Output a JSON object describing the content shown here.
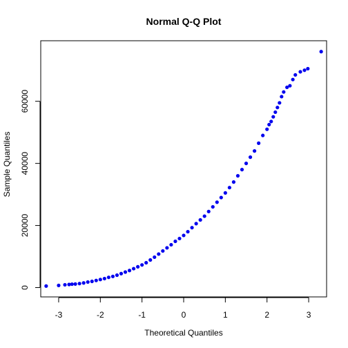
{
  "chart_data": {
    "type": "scatter",
    "title": "Normal Q-Q Plot",
    "xlabel": "Theoretical Quantiles",
    "ylabel": "Sample Quantiles",
    "xlim": [
      -3.43,
      3.43
    ],
    "ylim": [
      -3000,
      79500
    ],
    "xticks": [
      -3,
      -2,
      -1,
      0,
      1,
      2,
      3
    ],
    "yticks": [
      0,
      20000,
      40000,
      60000
    ],
    "grid": false,
    "legend": "none",
    "point_color": "#0000ee",
    "series": [
      {
        "x": [
          -3.3,
          -3.0,
          -2.85,
          -2.75,
          -2.68,
          -2.6,
          -2.5,
          -2.4,
          -2.3,
          -2.2,
          -2.1,
          -2.0,
          -1.9,
          -1.8,
          -1.7,
          -1.6,
          -1.5,
          -1.4,
          -1.3,
          -1.2,
          -1.1,
          -1.0,
          -0.9,
          -0.8,
          -0.7,
          -0.6,
          -0.5,
          -0.4,
          -0.3,
          -0.2,
          -0.1,
          0.0,
          0.1,
          0.2,
          0.3,
          0.4,
          0.5,
          0.6,
          0.7,
          0.8,
          0.9,
          1.0,
          1.1,
          1.2,
          1.3,
          1.4,
          1.5,
          1.6,
          1.7,
          1.8,
          1.9,
          2.0,
          2.05,
          2.1,
          2.15,
          2.2,
          2.25,
          2.3,
          2.35,
          2.4,
          2.48,
          2.55,
          2.62,
          2.68,
          2.8,
          2.9,
          2.98,
          3.3
        ],
        "y": [
          500,
          700,
          900,
          1000,
          1100,
          1150,
          1300,
          1500,
          1800,
          2000,
          2300,
          2600,
          2900,
          3300,
          3600,
          4000,
          4500,
          5000,
          5500,
          6100,
          6700,
          7300,
          8000,
          8900,
          9800,
          10800,
          11800,
          12800,
          13800,
          14900,
          15800,
          16800,
          18000,
          19300,
          20600,
          21800,
          23000,
          24500,
          26000,
          27500,
          29000,
          30500,
          32200,
          34000,
          36000,
          38000,
          40000,
          42000,
          44000,
          46500,
          49000,
          51000,
          52500,
          53500,
          55000,
          56500,
          58000,
          59500,
          61500,
          63000,
          64500,
          65000,
          67000,
          68500,
          69500,
          70000,
          70500,
          76000
        ]
      }
    ]
  }
}
